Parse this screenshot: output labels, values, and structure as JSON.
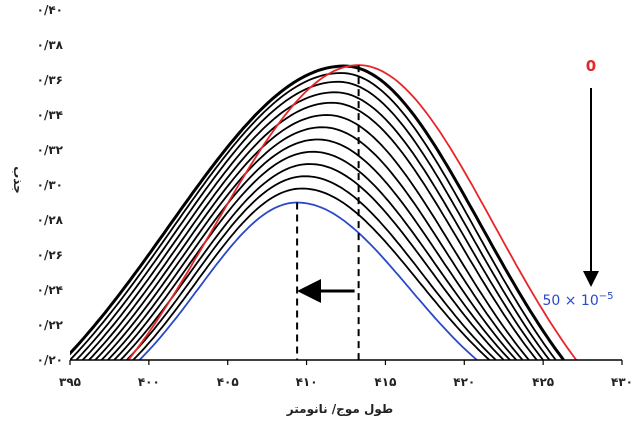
{
  "chart_data": {
    "type": "line",
    "title": "",
    "xlabel": "طول موج/ نانومتر",
    "ylabel": "جذب",
    "xlim": [
      395,
      430
    ],
    "ylim": [
      0.2,
      0.4
    ],
    "x_ticks": [
      395,
      400,
      405,
      410,
      415,
      420,
      425,
      430
    ],
    "x_tick_labels": [
      "۳۹۵",
      "۴۰۰",
      "۴۰۵",
      "۴۱۰",
      "۴۱۵",
      "۴۲۰",
      "۴۲۵",
      "۴۳۰"
    ],
    "y_ticks": [
      0.2,
      0.22,
      0.24,
      0.26,
      0.28,
      0.3,
      0.32,
      0.34,
      0.36,
      0.38,
      0.4
    ],
    "y_tick_labels": [
      "۰/۲۰",
      "۰/۲۲",
      "۰/۲۴",
      "۰/۲۶",
      "۰/۲۸",
      "۰/۳۰",
      "۰/۳۲",
      "۰/۳۴",
      "۰/۳۶",
      "۰/۳۸",
      "۰/۴۰"
    ],
    "grid": false,
    "annotations": {
      "start_label": "0",
      "end_label": "50 × 10",
      "end_label_exponent": "−5",
      "start_color": "#e8262a",
      "end_color": "#2a49c8"
    },
    "peak_shift": {
      "from_wavelength": 413.3,
      "to_wavelength": 409.4
    },
    "series": [
      {
        "color": "#e8262a",
        "peak_x": 413.3,
        "peak_y": 0.3685,
        "left_foot_x": 398.7,
        "right_foot_x": 427.1
      },
      {
        "color": "#000000",
        "peak_x": 412.4,
        "peak_y": 0.368,
        "left_foot_x": 394.6,
        "right_foot_x": 426.3
      },
      {
        "color": "#000000",
        "peak_x": 412.2,
        "peak_y": 0.364,
        "left_foot_x": 395.0,
        "right_foot_x": 425.8
      },
      {
        "color": "#000000",
        "peak_x": 412.0,
        "peak_y": 0.359,
        "left_foot_x": 395.4,
        "right_foot_x": 425.4
      },
      {
        "color": "#000000",
        "peak_x": 411.8,
        "peak_y": 0.353,
        "left_foot_x": 395.8,
        "right_foot_x": 425.0
      },
      {
        "color": "#000000",
        "peak_x": 411.6,
        "peak_y": 0.347,
        "left_foot_x": 396.2,
        "right_foot_x": 424.6
      },
      {
        "color": "#000000",
        "peak_x": 411.3,
        "peak_y": 0.34,
        "left_foot_x": 396.6,
        "right_foot_x": 424.1
      },
      {
        "color": "#000000",
        "peak_x": 411.0,
        "peak_y": 0.333,
        "left_foot_x": 397.0,
        "right_foot_x": 423.7
      },
      {
        "color": "#000000",
        "peak_x": 410.7,
        "peak_y": 0.326,
        "left_foot_x": 397.4,
        "right_foot_x": 423.3
      },
      {
        "color": "#000000",
        "peak_x": 410.4,
        "peak_y": 0.319,
        "left_foot_x": 397.8,
        "right_foot_x": 422.9
      },
      {
        "color": "#000000",
        "peak_x": 410.2,
        "peak_y": 0.312,
        "left_foot_x": 398.2,
        "right_foot_x": 422.5
      },
      {
        "color": "#000000",
        "peak_x": 409.9,
        "peak_y": 0.305,
        "left_foot_x": 398.6,
        "right_foot_x": 422.0
      },
      {
        "color": "#000000",
        "peak_x": 409.7,
        "peak_y": 0.298,
        "left_foot_x": 399.0,
        "right_foot_x": 421.6
      },
      {
        "color": "#2a49c8",
        "peak_x": 409.4,
        "peak_y": 0.29,
        "left_foot_x": 399.4,
        "right_foot_x": 420.8
      }
    ]
  }
}
